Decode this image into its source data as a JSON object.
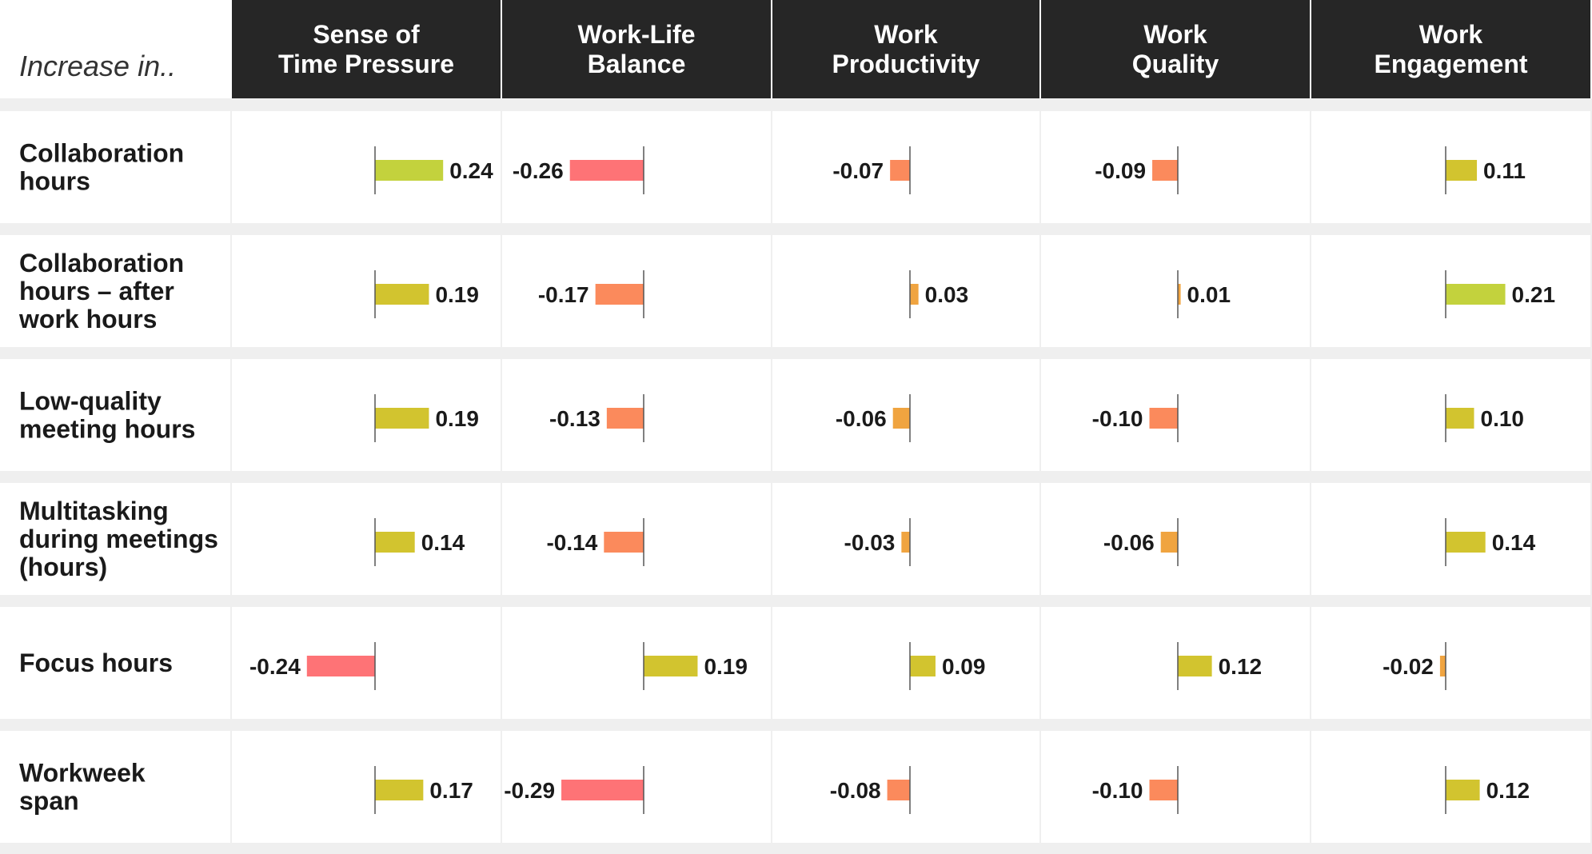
{
  "chart_data": {
    "type": "bar",
    "corner_label": "Increase in..",
    "columns": [
      {
        "lines": [
          "Sense of",
          "Time Pressure"
        ]
      },
      {
        "lines": [
          "Work-Life",
          "Balance"
        ]
      },
      {
        "lines": [
          "Work",
          "Productivity"
        ]
      },
      {
        "lines": [
          "Work",
          "Quality"
        ]
      },
      {
        "lines": [
          "Work",
          "Engagement"
        ]
      }
    ],
    "rows": [
      {
        "lines": [
          "Collaboration",
          "hours"
        ],
        "values": [
          0.24,
          -0.26,
          -0.07,
          -0.09,
          0.11
        ]
      },
      {
        "lines": [
          "Collaboration",
          "hours – after",
          "work hours"
        ],
        "values": [
          0.19,
          -0.17,
          0.03,
          0.01,
          0.21
        ]
      },
      {
        "lines": [
          "Low-quality",
          "meeting hours"
        ],
        "values": [
          0.19,
          -0.13,
          -0.06,
          -0.1,
          0.1
        ]
      },
      {
        "lines": [
          "Multitasking",
          "during meetings",
          "(hours)"
        ],
        "values": [
          0.14,
          -0.14,
          -0.03,
          -0.06,
          0.14
        ]
      },
      {
        "lines": [
          "Focus hours"
        ],
        "values": [
          -0.24,
          0.19,
          0.09,
          0.12,
          -0.02
        ]
      },
      {
        "lines": [
          "Workweek",
          "span"
        ],
        "values": [
          0.17,
          -0.29,
          -0.08,
          -0.1,
          0.12
        ]
      }
    ],
    "colors": {
      "header_bg": "#262626",
      "separator": "#efefef",
      "axis": "#555555",
      "strong_positive": "#c3d23d",
      "positive": "#d2c42f",
      "small": "#f0a440",
      "negative": "#fb8a5c",
      "strong_negative": "#fe7376"
    }
  }
}
